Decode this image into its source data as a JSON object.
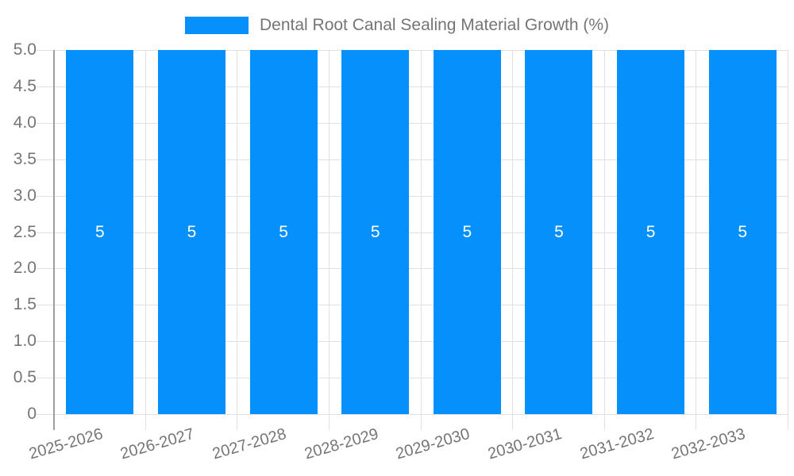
{
  "chart_data": {
    "type": "bar",
    "title": "Dental Root Canal Sealing Material Growth (%)",
    "categories": [
      "2025-2026",
      "2026-2027",
      "2027-2028",
      "2028-2029",
      "2029-2030",
      "2030-2031",
      "2031-2032",
      "2032-2033"
    ],
    "series": [
      {
        "name": "Dental Root Canal Sealing Material Growth (%)",
        "values": [
          5,
          5,
          5,
          5,
          5,
          5,
          5,
          5
        ]
      }
    ],
    "bar_value_labels": [
      "5",
      "5",
      "5",
      "5",
      "5",
      "5",
      "5",
      "5"
    ],
    "xlabel": "",
    "ylabel": "",
    "ylim": [
      0,
      5
    ],
    "ytick_step": 0.5,
    "ytick_labels_top_to_bottom": [
      "5.0",
      "4.5",
      "4.0",
      "3.5",
      "3.0",
      "2.5",
      "2.0",
      "1.5",
      "1.0",
      "0.5",
      "0"
    ],
    "grid": "horizontal and vertical category boundaries",
    "legend_position": "top-center",
    "colors": {
      "bar": "#0590fb",
      "grid": "#e0e0e0",
      "axis": "#9e9e9e",
      "tick_label": "#757575",
      "value_label": "#ffffff",
      "background": "#ffffff"
    }
  }
}
